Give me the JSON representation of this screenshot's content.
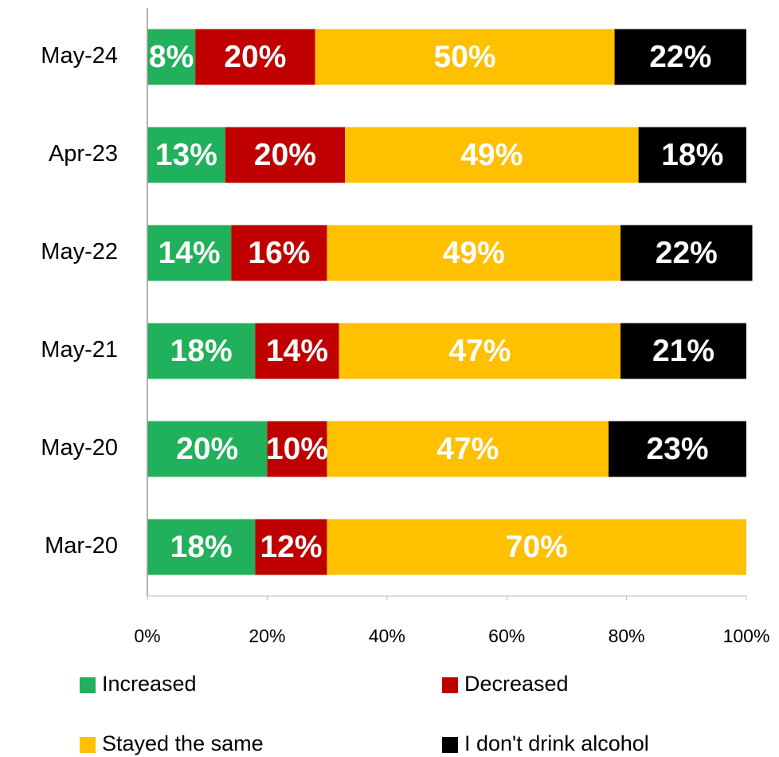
{
  "chart_data": {
    "type": "stacked-barh",
    "categories": [
      "May-24",
      "Apr-23",
      "May-22",
      "May-21",
      "May-20",
      "Mar-20"
    ],
    "series": [
      {
        "name": "Increased",
        "color": "#21b05b",
        "values": [
          8,
          13,
          14,
          18,
          20,
          18
        ],
        "value_labels": [
          "8%",
          "13%",
          "14%",
          "18%",
          "20%",
          "18%"
        ]
      },
      {
        "name": "Decreased",
        "color": "#c00000",
        "values": [
          20,
          20,
          16,
          14,
          10,
          12
        ],
        "value_labels": [
          "20%",
          "20%",
          "16%",
          "14%",
          "10%",
          "12%"
        ]
      },
      {
        "name": "Stayed the same",
        "color": "#ffc000",
        "values": [
          50,
          49,
          49,
          47,
          47,
          70
        ],
        "value_labels": [
          "50%",
          "49%",
          "49%",
          "47%",
          "47%",
          "70%"
        ]
      },
      {
        "name": "I don't drink alcohol",
        "color": "#000000",
        "values": [
          22,
          18,
          22,
          21,
          23,
          null
        ],
        "value_labels": [
          "22%",
          "18%",
          "22%",
          "21%",
          "23%",
          null
        ]
      }
    ],
    "xlim": [
      0,
      100
    ],
    "xticks": [
      {
        "value": 0,
        "label": "0%"
      },
      {
        "value": 20,
        "label": "20%"
      },
      {
        "value": 40,
        "label": "40%"
      },
      {
        "value": 60,
        "label": "60%"
      },
      {
        "value": 80,
        "label": "80%"
      },
      {
        "value": 100,
        "label": "100%"
      }
    ]
  }
}
